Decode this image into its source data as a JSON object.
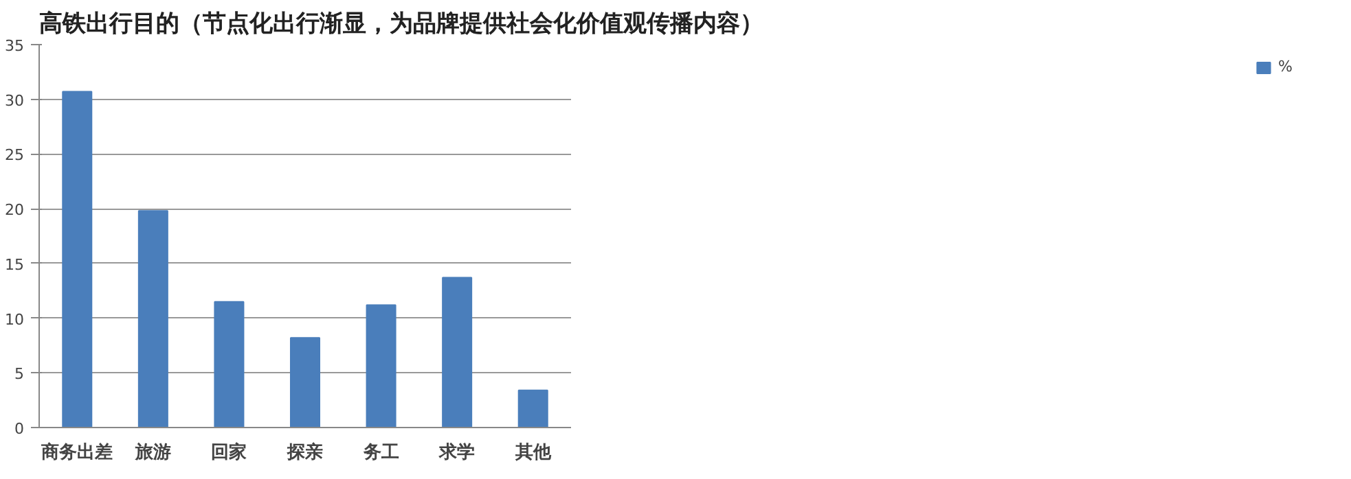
{
  "chart_data": {
    "type": "bar",
    "title": "高铁出行目的（节点化出行渐显，为品牌提供社会化价值观传播内容）",
    "categories": [
      "商务出差",
      "旅游",
      "回家",
      "探亲",
      "务工",
      "求学",
      "其他"
    ],
    "series": [
      {
        "name": "%",
        "color": "#4a7ebb",
        "values": [
          30.7,
          19.8,
          11.5,
          8.2,
          11.2,
          13.7,
          3.4
        ]
      }
    ],
    "ylim": [
      0,
      35
    ],
    "yticks": [
      0,
      5,
      10,
      15,
      20,
      25,
      30,
      35
    ],
    "grid": "y",
    "legend": "right"
  }
}
